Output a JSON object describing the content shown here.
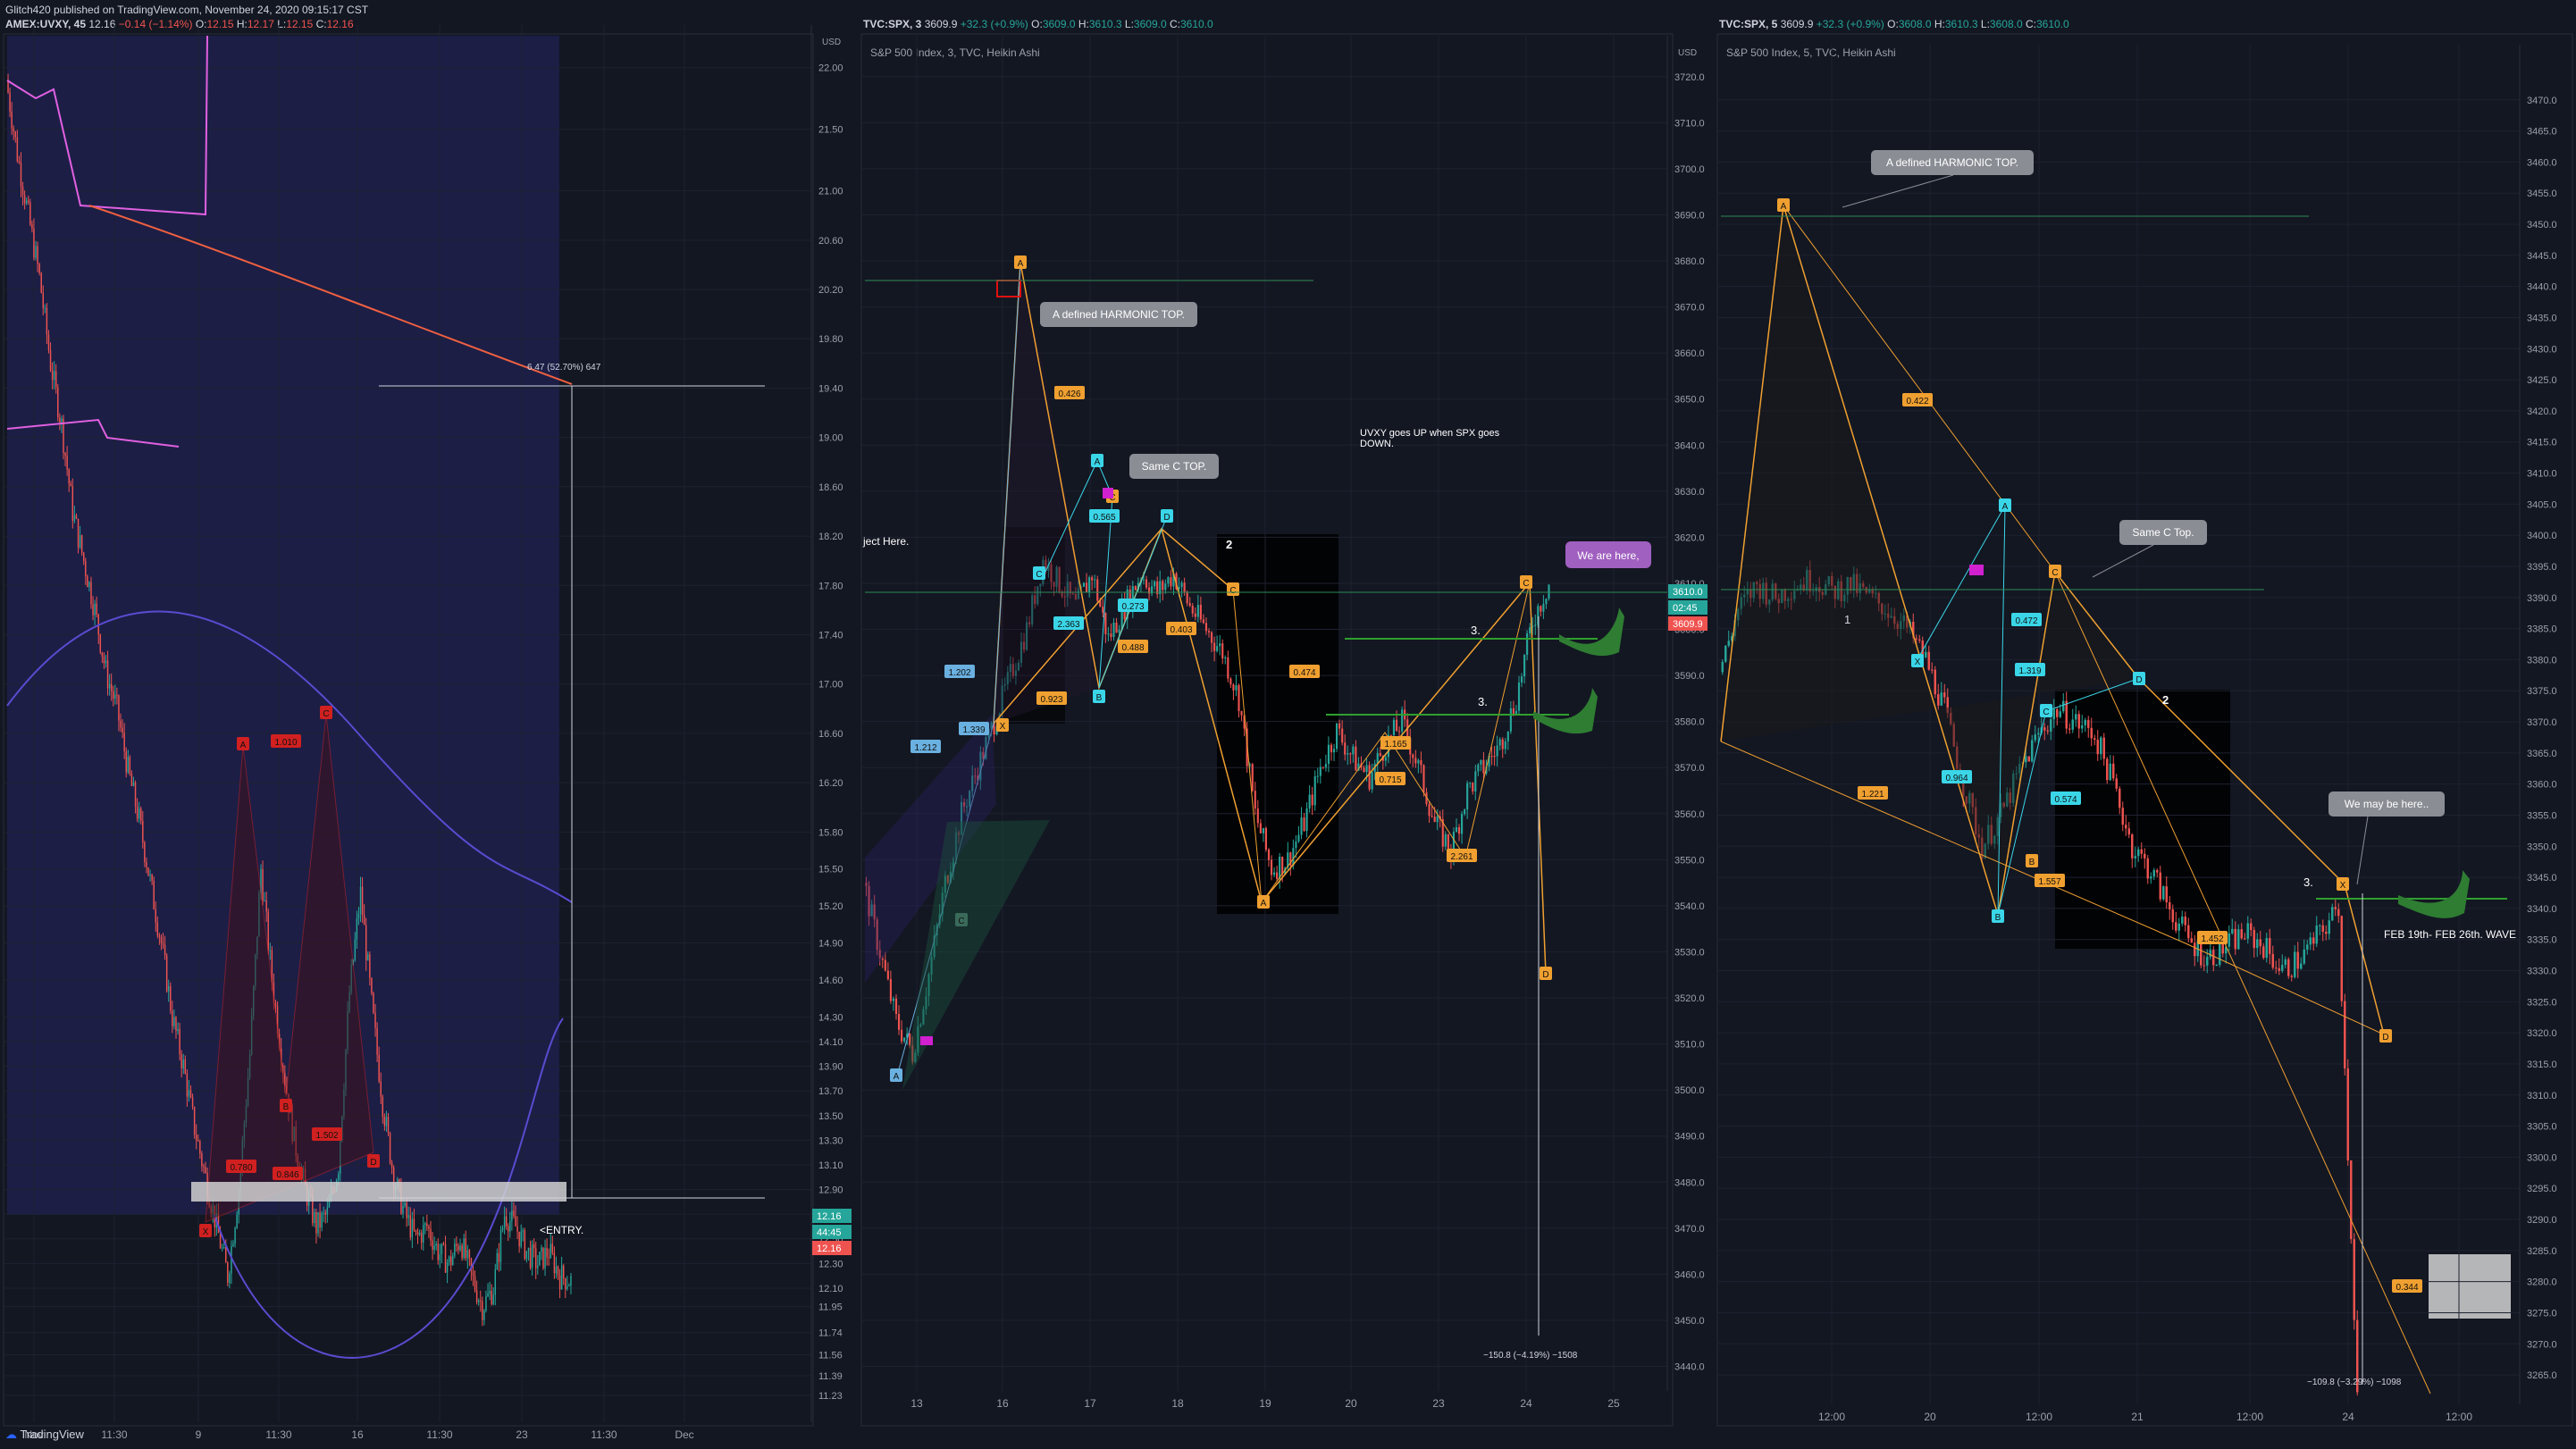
{
  "header": {
    "publisher": "Glitch420 published on TradingView.com, November 24, 2020 09:15:17 CST"
  },
  "footer": {
    "brand": "TradingView"
  },
  "panels": [
    {
      "id": "uvxy",
      "symbol": "AMEX:UVXY, 45",
      "last": "12.16",
      "change": "−0.14 (−1.14%)",
      "open": "12.15",
      "high": "12.17",
      "low": "12.15",
      "close": "12.16",
      "currency": "USD",
      "price_labels": [
        {
          "text": "12.16",
          "color": "#26a69a"
        },
        {
          "text": "44:45",
          "color": "#26a69a"
        },
        {
          "text": "12.16",
          "color": "#ef5350"
        }
      ]
    },
    {
      "id": "spx3",
      "symbol": "TVC:SPX, 3",
      "last": "3609.9",
      "change": "+32.3 (+0.9%)",
      "open": "3609.0",
      "high": "3610.3",
      "low": "3609.0",
      "close": "3610.0",
      "subtitle": "S&P 500 Index, 3, TVC, Heikin Ashi",
      "currency": "USD",
      "price_labels": [
        {
          "text": "3610.0",
          "color": "#26a69a"
        },
        {
          "text": "02:45",
          "color": "#26a69a"
        },
        {
          "text": "3609.9",
          "color": "#ef5350"
        }
      ]
    },
    {
      "id": "spx5",
      "symbol": "TVC:SPX, 5",
      "last": "3609.9",
      "change": "+32.3 (+0.9%)",
      "open": "3608.0",
      "high": "3610.3",
      "low": "3608.0",
      "close": "3610.0",
      "subtitle": "S&P 500 Index, 5, TVC, Heikin Ashi"
    }
  ],
  "chart_data": [
    {
      "type": "line",
      "subtype": "candlestick",
      "symbol": "AMEX:UVXY, 45",
      "y_ticks": [
        "22.00",
        "21.50",
        "21.00",
        "20.60",
        "20.20",
        "19.80",
        "19.40",
        "19.00",
        "18.60",
        "18.20",
        "17.80",
        "17.40",
        "17.00",
        "16.60",
        "16.20",
        "15.80",
        "15.50",
        "15.20",
        "14.90",
        "14.60",
        "14.30",
        "14.10",
        "13.90",
        "13.70",
        "13.50",
        "13.30",
        "13.10",
        "12.90",
        "12.70",
        "12.50",
        "12.30",
        "12.10",
        "11.95",
        "11.74",
        "11.56",
        "11.39",
        "11.23"
      ],
      "x_ticks": [
        "Nov",
        "11:30",
        "9",
        "11:30",
        "16",
        "11:30",
        "23",
        "11:30",
        "Dec"
      ],
      "ylim": [
        11.1,
        22.2
      ],
      "close_series": [
        21.9,
        21.3,
        20.8,
        20.3,
        19.6,
        19.1,
        18.4,
        18.0,
        17.6,
        17.1,
        16.8,
        16.3,
        15.9,
        15.4,
        14.9,
        14.3,
        13.9,
        13.4,
        13.0,
        12.6,
        12.2,
        12.9,
        14.0,
        15.5,
        14.6,
        13.9,
        13.3,
        12.9,
        12.6,
        12.7,
        13.1,
        14.5,
        15.3,
        14.4,
        13.6,
        13.0,
        12.7,
        12.5,
        12.6,
        12.4,
        12.3,
        12.5,
        12.2,
        11.95,
        12.1,
        12.7,
        12.6,
        12.4,
        12.3,
        12.4,
        12.2,
        12.16
      ],
      "harmonic_labels": [
        "A",
        "B",
        "C",
        "D",
        "X"
      ],
      "ratio_labels": [
        "0.780",
        "0.846",
        "1.010",
        "1.502"
      ],
      "measure_label": "6.47 (52.70%) 647",
      "annotations": [
        "<ENTRY."
      ]
    },
    {
      "type": "line",
      "subtype": "candlestick",
      "symbol": "TVC:SPX, 3",
      "y_ticks": [
        "3720.0",
        "3710.0",
        "3700.0",
        "3690.0",
        "3680.0",
        "3670.0",
        "3660.0",
        "3650.0",
        "3640.0",
        "3630.0",
        "3620.0",
        "3610.0",
        "3600.0",
        "3590.0",
        "3580.0",
        "3570.0",
        "3560.0",
        "3550.0",
        "3540.0",
        "3530.0",
        "3520.0",
        "3510.0",
        "3500.0",
        "3490.0",
        "3480.0",
        "3470.0",
        "3460.0",
        "3450.0",
        "3440.0"
      ],
      "x_ticks": [
        "13",
        "16",
        "17",
        "18",
        "19",
        "20",
        "23",
        "24",
        "25"
      ],
      "ylim": [
        3437,
        3725
      ],
      "close_series": [
        3545,
        3530,
        3515,
        3508,
        3525,
        3545,
        3560,
        3570,
        3580,
        3590,
        3600,
        3615,
        3610,
        3605,
        3612,
        3598,
        3605,
        3612,
        3608,
        3612,
        3605,
        3600,
        3595,
        3585,
        3560,
        3548,
        3550,
        3558,
        3570,
        3578,
        3572,
        3568,
        3575,
        3580,
        3570,
        3558,
        3552,
        3565,
        3570,
        3575,
        3585,
        3602,
        3610
      ],
      "harmonic_labels": [
        "A",
        "B",
        "C",
        "D",
        "X"
      ],
      "ratio_labels": [
        "0.426",
        "0.565",
        "0.923",
        "1.202",
        "1.212",
        "1.339",
        "2.363",
        "0.273",
        "0.488",
        "0.403",
        "0.474",
        "1.165",
        "0.715",
        "2.261"
      ],
      "measure_label": "−150.8 (−4.19%) −1508",
      "annotations": [
        "A defined HARMONIC TOP.",
        "Same C TOP.",
        "UVXY goes UP when SPX goes DOWN.",
        "We are here,",
        "ject Here.",
        "2",
        "3.",
        "3."
      ]
    },
    {
      "type": "line",
      "subtype": "candlestick",
      "symbol": "TVC:SPX, 5",
      "y_ticks": [
        "3470.0",
        "3465.0",
        "3460.0",
        "3455.0",
        "3450.0",
        "3445.0",
        "3440.0",
        "3435.0",
        "3430.0",
        "3425.0",
        "3420.0",
        "3415.0",
        "3410.0",
        "3405.0",
        "3400.0",
        "3395.0",
        "3390.0",
        "3385.0",
        "3380.0",
        "3375.0",
        "3370.0",
        "3365.0",
        "3360.0",
        "3355.0",
        "3350.0",
        "3345.0",
        "3340.0",
        "3335.0",
        "3330.0",
        "3325.0",
        "3320.0",
        "3315.0",
        "3310.0",
        "3305.0",
        "3300.0",
        "3295.0",
        "3290.0",
        "3285.0",
        "3280.0",
        "3275.0",
        "3270.0",
        "3265.0"
      ],
      "x_ticks": [
        "12:00",
        "20",
        "12:00",
        "21",
        "12:00",
        "24",
        "12:00"
      ],
      "ylim": [
        3262,
        3476
      ],
      "close_series": [
        3378,
        3388,
        3392,
        3390,
        3392,
        3393,
        3391,
        3392,
        3390,
        3388,
        3385,
        3380,
        3372,
        3360,
        3350,
        3355,
        3362,
        3368,
        3372,
        3370,
        3368,
        3360,
        3350,
        3346,
        3340,
        3335,
        3332,
        3334,
        3336,
        3334,
        3330,
        3332,
        3336,
        3340,
        3262
      ],
      "harmonic_labels": [
        "A",
        "B",
        "C",
        "D",
        "X"
      ],
      "ratio_labels": [
        "0.422",
        "0.472",
        "1.319",
        "1.221",
        "0.964",
        "0.574",
        "1.557",
        "1.452",
        "0.344"
      ],
      "measure_label": "−109.8 (−3.29%) −1098",
      "annotations": [
        "A defined HARMONIC TOP.",
        "Same C Top.",
        "We may be here..",
        "FEB 19th- FEB 26th. WAVE",
        "1",
        "2",
        "3."
      ]
    }
  ],
  "colors": {
    "background": "#131722",
    "grid": "#1e2230",
    "up": "#26a69a",
    "down": "#ef5350",
    "pattern": "#f0a030",
    "pattern_cyan": "#3ad6e8",
    "uvxy_pattern": "#d02020",
    "bb_band": "#5a4bd0",
    "vwap": "#e060e0",
    "ma": "#f06040",
    "arrow": "#2e7d32"
  }
}
